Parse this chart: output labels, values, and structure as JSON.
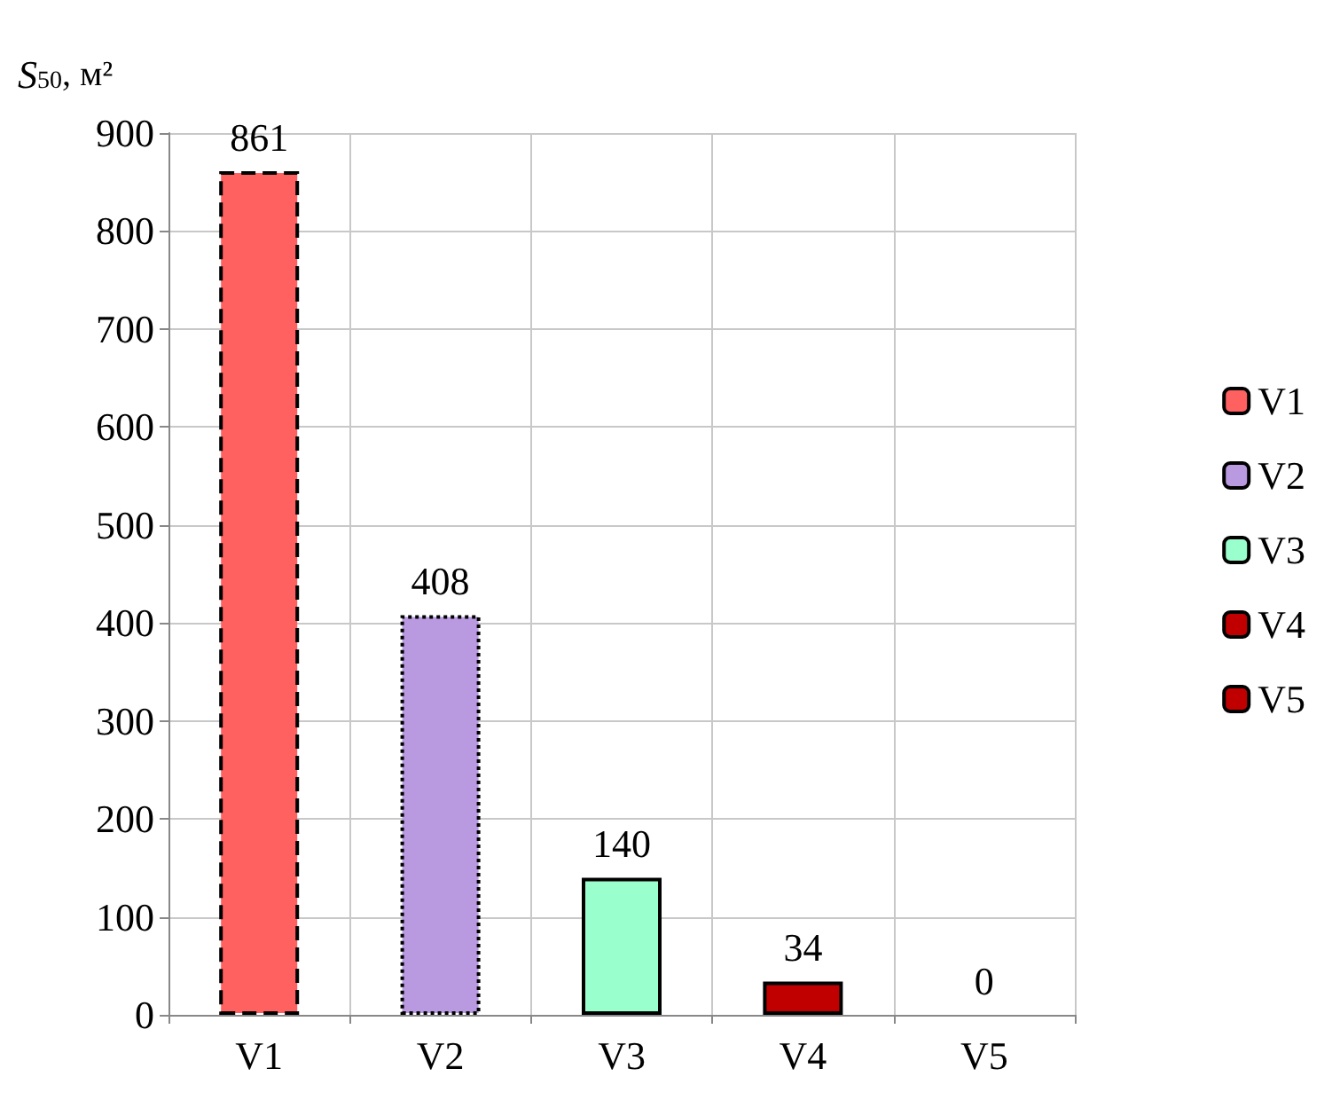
{
  "chart_data": {
    "type": "bar",
    "ylabel": "S$_{50}$, м²",
    "categories": [
      "V1",
      "V2",
      "V3",
      "V4",
      "V5"
    ],
    "series": [
      {
        "name": "V1",
        "color": "#ff6161",
        "line_style": "dashed",
        "values": [
          861,
          null,
          null,
          null,
          null
        ]
      },
      {
        "name": "V2",
        "color": "#b99ae0",
        "line_style": "dotted",
        "values": [
          null,
          408,
          null,
          null,
          null
        ]
      },
      {
        "name": "V3",
        "color": "#99ffcc",
        "line_style": "solid",
        "values": [
          null,
          null,
          140,
          null,
          null
        ]
      },
      {
        "name": "V4",
        "color": "#c00000",
        "line_style": "solid",
        "values": [
          null,
          null,
          null,
          34,
          null
        ]
      },
      {
        "name": "V5",
        "color": "#c00000",
        "line_style": "solid",
        "values": [
          null,
          null,
          null,
          null,
          0
        ]
      }
    ],
    "ylim": [
      0,
      900
    ],
    "yticks": [
      0,
      100,
      200,
      300,
      400,
      500,
      600,
      700,
      800,
      900
    ],
    "grid": true,
    "legend": "right",
    "data_labels": true,
    "stacked": true
  }
}
